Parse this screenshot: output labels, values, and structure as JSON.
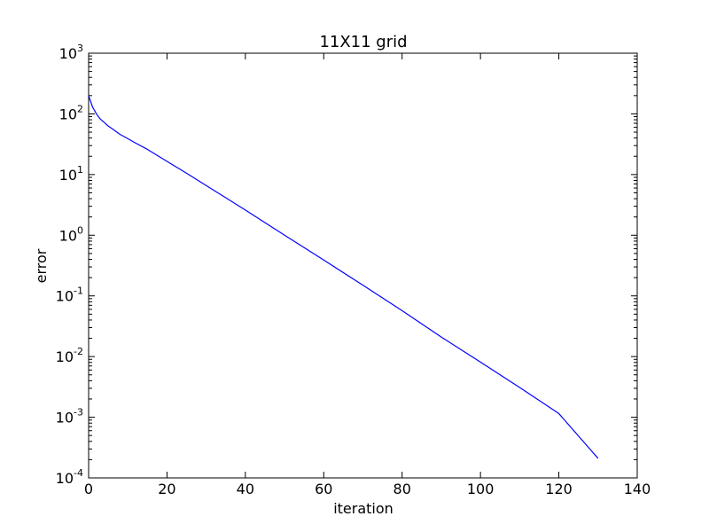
{
  "chart_data": {
    "type": "line",
    "title": "11X11 grid",
    "xlabel": "iteration",
    "ylabel": "error",
    "xlim": [
      0,
      140
    ],
    "ylim": [
      0.0001,
      1000
    ],
    "yscale": "log",
    "grid": false,
    "x_ticks": [
      {
        "value": 0,
        "label": "0"
      },
      {
        "value": 20,
        "label": "20"
      },
      {
        "value": 40,
        "label": "40"
      },
      {
        "value": 60,
        "label": "60"
      },
      {
        "value": 80,
        "label": "80"
      },
      {
        "value": 100,
        "label": "100"
      },
      {
        "value": 120,
        "label": "120"
      },
      {
        "value": 140,
        "label": "140"
      }
    ],
    "y_ticks": [
      {
        "value": 1000,
        "base": "10",
        "exp": "3"
      },
      {
        "value": 100,
        "base": "10",
        "exp": "2"
      },
      {
        "value": 10,
        "base": "10",
        "exp": "1"
      },
      {
        "value": 1,
        "base": "10",
        "exp": "0"
      },
      {
        "value": 0.1,
        "base": "10",
        "exp": "-1"
      },
      {
        "value": 0.01,
        "base": "10",
        "exp": "-2"
      },
      {
        "value": 0.001,
        "base": "10",
        "exp": "-3"
      },
      {
        "value": 0.0001,
        "base": "10",
        "exp": "-4"
      }
    ],
    "series": [
      {
        "color": "#0000ff",
        "x": [
          0,
          1,
          2,
          3,
          4,
          5,
          6,
          8,
          10,
          12,
          15,
          20,
          25,
          30,
          40,
          50,
          60,
          70,
          80,
          90,
          100,
          110,
          120,
          130
        ],
        "y": [
          200,
          130,
          100,
          82,
          72,
          63,
          57,
          46,
          39,
          33,
          26,
          16.5,
          10.5,
          6.6,
          2.6,
          1.0,
          0.39,
          0.15,
          0.057,
          0.021,
          0.0081,
          0.0031,
          0.00115,
          0.00021
        ]
      }
    ]
  }
}
